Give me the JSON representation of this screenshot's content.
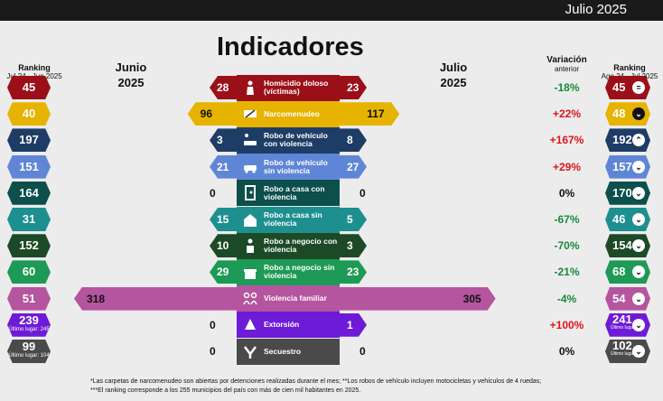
{
  "header": {
    "date": "Julio 2025"
  },
  "title": "Indicadores",
  "columns": {
    "rank_left_title": "Ranking",
    "rank_left_sub": "Jul 24 - Jun 2025",
    "june_title": "Junio 2025",
    "july_title": "Julio 2025",
    "variation_title": "Variación",
    "variation_sub": "anterior",
    "rank_right_title": "Ranking",
    "rank_right_sub": "Ago 24 - Jul 2025"
  },
  "colors": {
    "homicidio": "#9b1018",
    "narcomenudeo": "#e6b300",
    "robo_vehiculo_cv": "#1e3d66",
    "robo_vehiculo_sv": "#5f86d6",
    "robo_casa_cv": "#0c4f4b",
    "robo_casa_sv": "#1e8f8f",
    "robo_negocio_cv": "#1d4a26",
    "robo_negocio_sv": "#1d9a55",
    "violencia_familiar": "#b5549f",
    "extorsion": "#6d1bd6",
    "secuestro": "#4a4a4a",
    "positive_change": "#e0141d",
    "negative_change": "#168a3b"
  },
  "chart_data": {
    "type": "bar",
    "title": "Indicadores",
    "xlim": [
      0,
      320
    ],
    "categories": [
      "Homicidio doloso (víctimas)",
      "Narcomenudeo",
      "Robo de vehículo con violencia",
      "Robo de vehículo sin violencia",
      "Robo a casa con violencia",
      "Robo a casa sin violencia",
      "Robo a negocio con violencia",
      "Robo a negocio sin violencia",
      "Violencia familiar",
      "Extorsión",
      "Secuestro"
    ],
    "series": [
      {
        "name": "Junio 2025",
        "values": [
          28,
          96,
          3,
          21,
          0,
          15,
          10,
          29,
          318,
          0,
          0
        ]
      },
      {
        "name": "Julio 2025",
        "values": [
          23,
          117,
          8,
          27,
          0,
          5,
          3,
          23,
          305,
          1,
          0
        ]
      }
    ],
    "variation": [
      "-18%",
      "+22%",
      "+167%",
      "+29%",
      "0%",
      "-67%",
      "-70%",
      "-21%",
      "-4%",
      "+100%",
      "0%"
    ],
    "rank_prev": [
      "45",
      "40",
      "197",
      "151",
      "164",
      "31",
      "152",
      "60",
      "51",
      "239",
      "99"
    ],
    "rank_prev_note": [
      "",
      "",
      "",
      "",
      "",
      "",
      "",
      "",
      "",
      "Último lugar: 245",
      "Último lugar: 104"
    ],
    "rank_curr": [
      "45",
      "48",
      "192",
      "157",
      "170",
      "46",
      "154",
      "68",
      "54",
      "241",
      "102"
    ],
    "rank_curr_note": [
      "",
      "",
      "",
      "",
      "",
      "",
      "",
      "",
      "",
      "Último lugar: 242",
      "Último lugar: 107"
    ],
    "rank_trend": [
      "equal",
      "down",
      "up",
      "down",
      "down",
      "down",
      "down",
      "down",
      "down",
      "down",
      "down"
    ]
  },
  "icons": [
    "gun-victim-icon",
    "drug-hand-icon",
    "armed-car-icon",
    "car-icon",
    "house-armed-icon",
    "house-icon",
    "shop-armed-icon",
    "shop-icon",
    "family-icon",
    "extortion-icon",
    "kidnap-icon"
  ],
  "footnotes": [
    "*Las carpetas de narcomenudeo son abiertas por detenciones realizadas durante el mes; **Los robos de vehículo incluyen motocicletas y vehículos de 4 ruedas;",
    "***El ranking corresponde a los 255 municipios del país con más de cien mil habitantes en 2025."
  ]
}
